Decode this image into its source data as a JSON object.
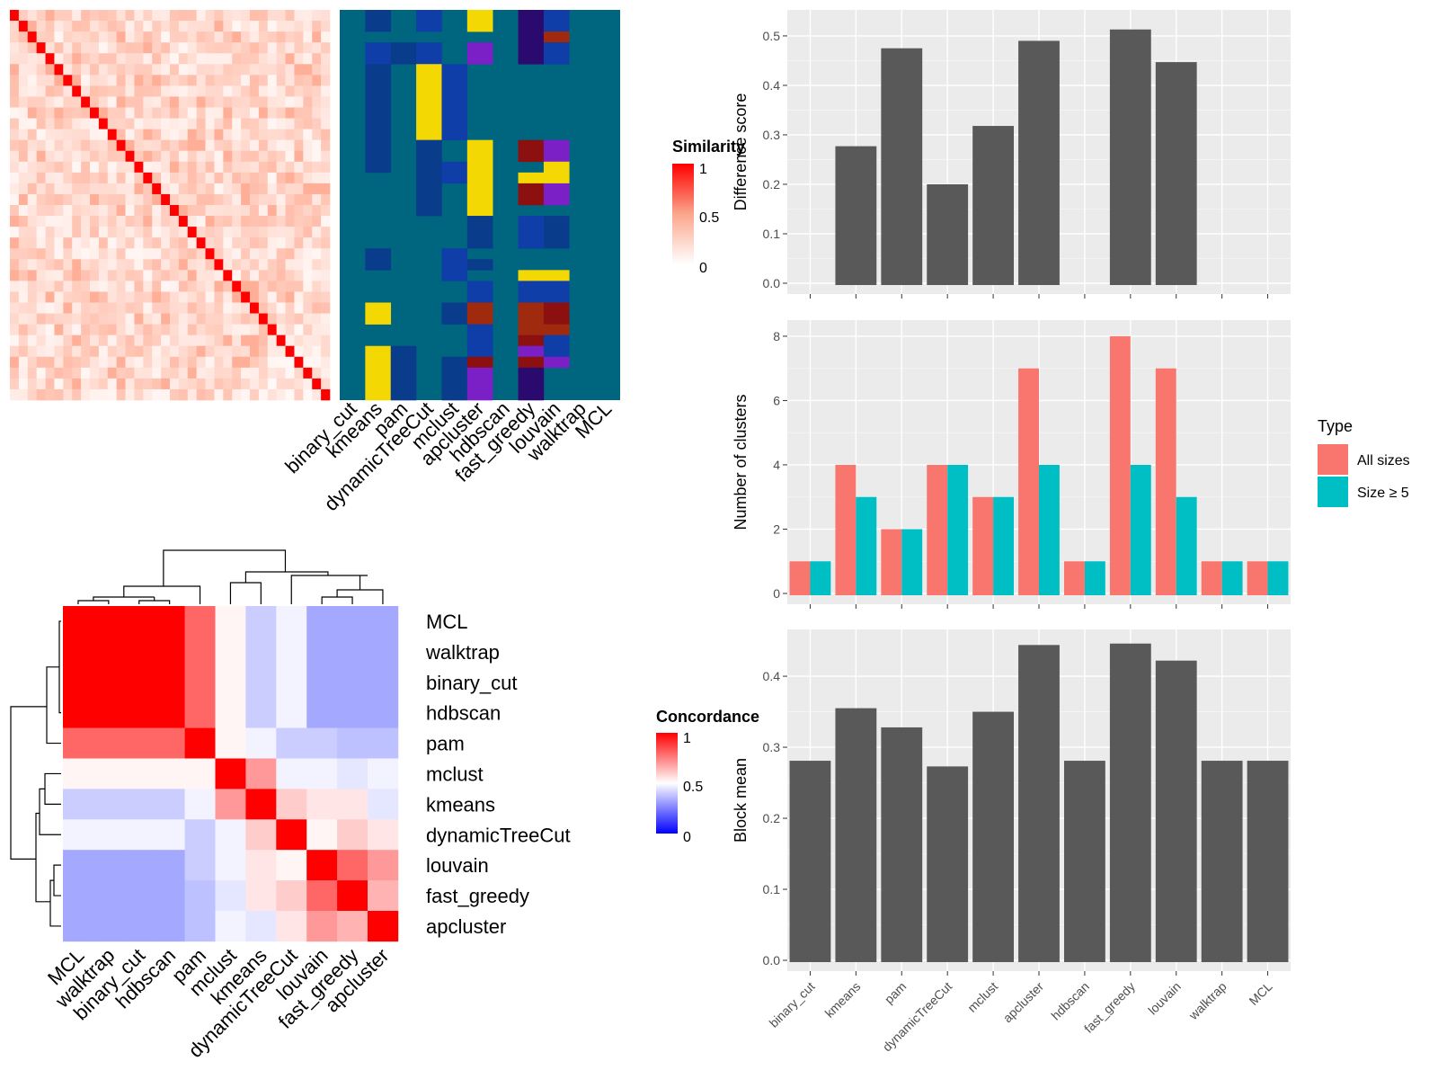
{
  "methods": [
    "binary_cut",
    "kmeans",
    "pam",
    "dynamicTreeCut",
    "mclust",
    "apcluster",
    "hdbscan",
    "fast_greedy",
    "louvain",
    "walktrap",
    "MCL"
  ],
  "similarity_heatmap": {
    "legend_title": "Similarity",
    "legend_ticks": [
      "1",
      "0.5",
      "0"
    ],
    "n": 36,
    "palette": {
      "teal": "#006680",
      "navy": "#0a3c8c",
      "blue": "#0f3ea8",
      "yellow": "#f3d803",
      "purple": "#7b1fc6",
      "dark_purple": "#2a0a6e",
      "dark_red": "#8c1010",
      "red_brown": "#a02a0e"
    }
  },
  "concordance_heatmap": {
    "legend_title": "Concordance",
    "legend_ticks": [
      "1",
      "0.5",
      "0"
    ],
    "order": [
      "MCL",
      "walktrap",
      "binary_cut",
      "hdbscan",
      "pam",
      "mclust",
      "kmeans",
      "dynamicTreeCut",
      "louvain",
      "fast_greedy",
      "apcluster"
    ],
    "matrix": [
      [
        1,
        1,
        1,
        1,
        0.8,
        0.52,
        0.3,
        0.45,
        0.15,
        0.15,
        0.15
      ],
      [
        1,
        1,
        1,
        1,
        0.8,
        0.52,
        0.3,
        0.45,
        0.15,
        0.15,
        0.15
      ],
      [
        1,
        1,
        1,
        1,
        0.8,
        0.52,
        0.3,
        0.45,
        0.15,
        0.15,
        0.15
      ],
      [
        1,
        1,
        1,
        1,
        0.8,
        0.52,
        0.3,
        0.45,
        0.15,
        0.15,
        0.15
      ],
      [
        0.8,
        0.8,
        0.8,
        0.8,
        1,
        0.52,
        0.45,
        0.3,
        0.3,
        0.25,
        0.25
      ],
      [
        0.52,
        0.52,
        0.52,
        0.52,
        0.52,
        1,
        0.7,
        0.45,
        0.45,
        0.4,
        0.45
      ],
      [
        0.3,
        0.3,
        0.3,
        0.3,
        0.45,
        0.7,
        1,
        0.6,
        0.55,
        0.55,
        0.4
      ],
      [
        0.45,
        0.45,
        0.45,
        0.45,
        0.3,
        0.45,
        0.6,
        1,
        0.52,
        0.6,
        0.55
      ],
      [
        0.15,
        0.15,
        0.15,
        0.15,
        0.3,
        0.45,
        0.55,
        0.52,
        1,
        0.8,
        0.7
      ],
      [
        0.15,
        0.15,
        0.15,
        0.15,
        0.25,
        0.4,
        0.55,
        0.6,
        0.8,
        1,
        0.65
      ],
      [
        0.15,
        0.15,
        0.15,
        0.15,
        0.25,
        0.45,
        0.4,
        0.55,
        0.7,
        0.65,
        1
      ]
    ]
  },
  "chart_data": [
    {
      "type": "bar",
      "ylabel": "Difference score",
      "categories": [
        "binary_cut",
        "kmeans",
        "pam",
        "dynamicTreeCut",
        "mclust",
        "apcluster",
        "hdbscan",
        "fast_greedy",
        "louvain",
        "walktrap",
        "MCL"
      ],
      "values": [
        0,
        0.277,
        0.475,
        0.2,
        0.318,
        0.49,
        0,
        0.513,
        0.447,
        0,
        0
      ],
      "ylim": [
        0,
        0.52
      ],
      "yticks": [
        "0.0",
        "0.1",
        "0.2",
        "0.3",
        "0.4",
        "0.5"
      ],
      "color": "#595959"
    },
    {
      "type": "bar",
      "ylabel": "Number of clusters",
      "categories": [
        "binary_cut",
        "kmeans",
        "pam",
        "dynamicTreeCut",
        "mclust",
        "apcluster",
        "hdbscan",
        "fast_greedy",
        "louvain",
        "walktrap",
        "MCL"
      ],
      "series": [
        {
          "name": "All sizes",
          "values": [
            1,
            4,
            2,
            4,
            3,
            7,
            1,
            8,
            7,
            1,
            1
          ],
          "color": "#f8766d"
        },
        {
          "name": "Size ≥ 5",
          "values": [
            1,
            3,
            2,
            4,
            3,
            4,
            1,
            4,
            3,
            1,
            1
          ],
          "color": "#00bfc4"
        }
      ],
      "ylim": [
        0,
        8
      ],
      "yticks": [
        "0",
        "2",
        "4",
        "6",
        "8"
      ],
      "legend_title": "Type",
      "legend_position": "right"
    },
    {
      "type": "bar",
      "ylabel": "Block mean",
      "categories": [
        "binary_cut",
        "kmeans",
        "pam",
        "dynamicTreeCut",
        "mclust",
        "apcluster",
        "hdbscan",
        "fast_greedy",
        "louvain",
        "walktrap",
        "MCL"
      ],
      "values": [
        0.281,
        0.355,
        0.328,
        0.273,
        0.35,
        0.444,
        0.281,
        0.446,
        0.422,
        0.281,
        0.281
      ],
      "ylim": [
        0,
        0.44
      ],
      "yticks": [
        "0.0",
        "0.1",
        "0.2",
        "0.3",
        "0.4"
      ],
      "color": "#595959"
    }
  ]
}
